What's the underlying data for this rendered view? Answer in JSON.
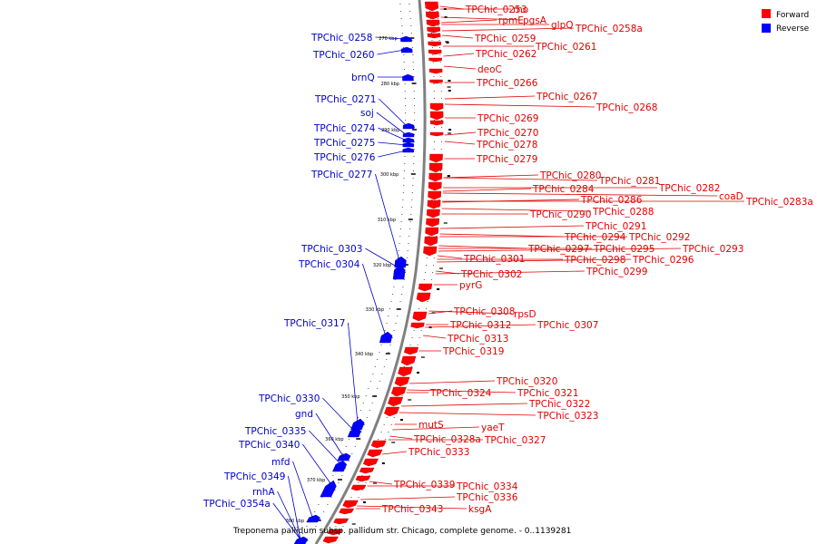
{
  "caption": "Treponema pallidum subsp. pallidum str. Chicago, complete genome. - 0..1139281",
  "legend": [
    {
      "label": "Forward",
      "color": "#ff0000"
    },
    {
      "label": "Reverse",
      "color": "#0000ff"
    }
  ],
  "colors": {
    "forward": "#ff0000",
    "forward_line": "#e00000",
    "reverse": "#0000ff",
    "reverse_line": "#0000cc",
    "backbone": "#808080"
  },
  "ticks": [
    "270 kbp",
    "280 kbp",
    "290 kbp",
    "300 kbp",
    "310 kbp",
    "320 kbp",
    "330 kbp",
    "340 kbp",
    "350 kbp",
    "360 kbp",
    "370 kbp",
    "380 kbp"
  ],
  "forward_genes": [
    "TPChic_0253",
    "rho",
    "rpmE",
    "pgsA",
    "glpQ",
    "TPChic_0258a",
    "TPChic_0259",
    "TPChic_0261",
    "TPChic_0262",
    "deoC",
    "TPChic_0266",
    "TPChic_0267",
    "TPChic_0268",
    "TPChic_0269",
    "TPChic_0270",
    "TPChic_0278",
    "TPChic_0279",
    "TPChic_0280",
    "TPChic_0281",
    "TPChic_0282",
    "TPChic_0284",
    "coaD",
    "TPChic_0283a",
    "TPChic_0286",
    "TPChic_0288",
    "TPChic_0290",
    "TPChic_0291",
    "TPChic_0294",
    "TPChic_0292",
    "TPChic_0293",
    "TPChic_0297",
    "TPChic_0295",
    "TPChic_0296",
    "TPChic_0301",
    "TPChic_0298",
    "TPChic_0299",
    "TPChic_0302",
    "pyrG",
    "TPChic_0308",
    "rpsD",
    "TPChic_0312",
    "TPChic_0307",
    "TPChic_0313",
    "TPChic_0319",
    "TPChic_0320",
    "TPChic_0321",
    "TPChic_0324",
    "TPChic_0322",
    "TPChic_0323",
    "mutS",
    "yaeT",
    "TPChic_0328a",
    "TPChic_0327",
    "TPChic_0333",
    "TPChic_0339",
    "TPChic_0334",
    "TPChic_0336",
    "ksgA",
    "TPChic_0343"
  ],
  "reverse_genes": [
    "TPChic_0258",
    "TPChic_0260",
    "brnQ",
    "TPChic_0271",
    "soj",
    "TPChic_0274",
    "TPChic_0275",
    "TPChic_0276",
    "TPChic_0277",
    "TPChic_0303",
    "TPChic_0304",
    "TPChic_0317",
    "TPChic_0330",
    "gnd",
    "TPChic_0335",
    "TPChic_0340",
    "mfd",
    "TPChic_0349",
    "rnhA",
    "TPChic_0354a"
  ]
}
